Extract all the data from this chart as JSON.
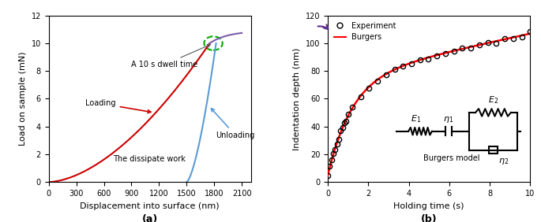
{
  "panel_a": {
    "title": "(a)",
    "xlabel": "Displacement into surface (nm)",
    "ylabel": "Load on sample (mN)",
    "xlim": [
      0,
      2200
    ],
    "ylim": [
      0,
      12
    ],
    "xticks": [
      0,
      300,
      600,
      900,
      1200,
      1500,
      1800,
      2100
    ],
    "yticks": [
      0,
      2,
      4,
      6,
      8,
      10,
      12
    ],
    "loading_color": "#cc0000",
    "hold_color": "#7b5ea7",
    "unloading_color": "#5b9bd5",
    "dwell_ellipse_color": "#00aa00",
    "annotation_color": "#555555"
  },
  "panel_b": {
    "title": "(b)",
    "xlabel": "Holding time (s)",
    "ylabel": "Indentation depth (nm)",
    "xlim": [
      0,
      10
    ],
    "ylim": [
      0,
      120
    ],
    "xticks": [
      0,
      2,
      4,
      6,
      8,
      10
    ],
    "yticks": [
      0,
      20,
      40,
      60,
      80,
      100,
      120
    ],
    "burgers_color": "#ff0000",
    "experiment_color": "#000000",
    "arrow_color": "#5b2d8e"
  }
}
